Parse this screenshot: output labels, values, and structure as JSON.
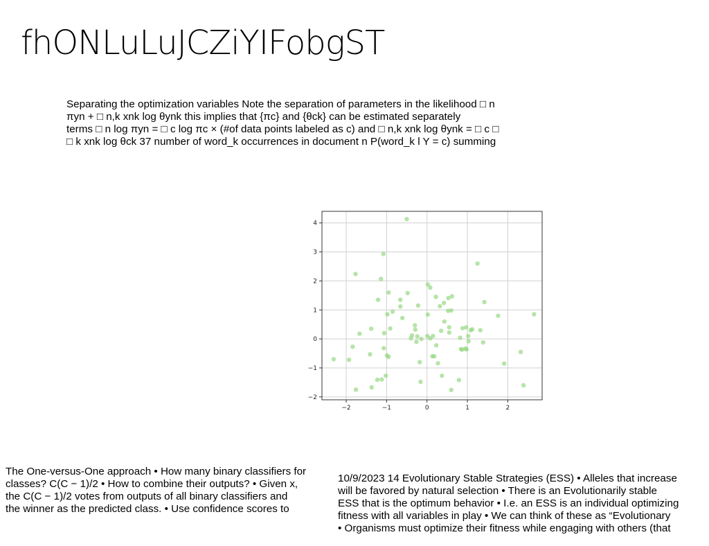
{
  "title": "fhONLuLuJCZiYIFobgST",
  "blocks": {
    "top": [
      "Separating the optimization variables Note the separation of parameters in the likelihood □ n",
      "πyn + □ n,k xnk log θynk this implies that {πc} and {θck} can be estimated separately",
      "terms □ n log πyn = □ c log πc × (#of data points labeled as c) and □ n,k xnk log θynk = □ c □",
      "□ k xnk log θck 37 number of word_k occurrences in document n P(word_k l Y = c) summing"
    ],
    "left": [
      "The One-versus-One approach • How many binary classifiers for",
      "classes? C(C − 1)/2 • How to combine their outputs? • Given x,",
      "the C(C − 1)/2 votes from outputs of all binary classifiers and",
      "the winner as the predicted class. • Use confidence scores to"
    ],
    "right": [
      "10/9/2023 14 Evolutionary Stable Strategies (ESS) • Alleles that increase",
      "will be favored by natural selection • There is an Evolutionarily stable",
      "ESS that is the optimum behavior • I.e. an ESS is an individual optimizing",
      "fitness with all variables in play • We can think of these as “Evolutionary",
      "• Organisms must optimize their fitness while engaging with others (that"
    ]
  },
  "chart_data": {
    "type": "scatter",
    "title": "",
    "xlabel": "",
    "ylabel": "",
    "xlim": [
      -2.6,
      2.85
    ],
    "ylim": [
      -2.1,
      4.4
    ],
    "xticks": [
      -2,
      -1,
      0,
      1,
      2
    ],
    "yticks": [
      -2,
      -1,
      0,
      1,
      2,
      3,
      4
    ],
    "xtick_labels": [
      "−2",
      "−1",
      "0",
      "1",
      "2"
    ],
    "ytick_labels": [
      "−2",
      "−1",
      "0",
      "1",
      "2",
      "3",
      "4"
    ],
    "grid": true,
    "point_color": "#8fd67a",
    "x": [
      -0.5,
      -1.08,
      1.25,
      -1.77,
      -1.14,
      -0.95,
      0.02,
      0.08,
      -0.66,
      -0.48,
      -0.98,
      0.22,
      0.53,
      0.62,
      -0.66,
      -0.22,
      0.42,
      0.6,
      -0.61,
      0.52,
      1.42,
      -0.85,
      0.43,
      1.76,
      0.02,
      0.55,
      2.65,
      -1.21,
      -0.3,
      0.32,
      -0.91,
      -1.38,
      0.15,
      0.88,
      0.97,
      1.12,
      1.08,
      -1.06,
      -1.67,
      -0.29,
      0.35,
      0.55,
      0.82,
      1.32,
      1.02,
      -0.4,
      -0.37,
      0.08,
      0.01,
      -0.24,
      -0.14,
      1.39,
      -1.84,
      -0.26,
      0.23,
      -1.07,
      0.95,
      0.84,
      0.87,
      0.98,
      1.03,
      -1.41,
      0.13,
      -0.99,
      -0.95,
      -1.93,
      -2.31,
      0.18,
      2.32,
      1.91,
      -0.18,
      0.27,
      -1.02,
      0.37,
      -1.23,
      -1.12,
      -0.16,
      0.79,
      -1.37,
      2.39,
      -1.76,
      0.6
    ],
    "y": [
      4.13,
      2.93,
      2.6,
      2.24,
      2.07,
      1.6,
      1.88,
      1.77,
      1.35,
      1.58,
      0.85,
      1.45,
      1.41,
      1.47,
      1.12,
      1.15,
      1.24,
      0.98,
      0.72,
      0.97,
      1.27,
      0.94,
      0.6,
      0.8,
      0.84,
      0.4,
      0.85,
      1.35,
      0.47,
      1.13,
      0.36,
      0.35,
      0.1,
      0.37,
      0.4,
      0.33,
      0.3,
      0.2,
      0.18,
      0.32,
      0.28,
      0.22,
      0.04,
      0.3,
      0.1,
      0.02,
      0.12,
      0.02,
      0.1,
      0.09,
      0.0,
      -0.12,
      -0.27,
      -0.1,
      -0.22,
      -0.32,
      -0.33,
      -0.35,
      -0.37,
      -0.36,
      -0.08,
      -0.53,
      -0.6,
      -0.57,
      -0.62,
      -0.72,
      -0.7,
      -0.6,
      -0.45,
      -0.85,
      -0.8,
      -0.84,
      -1.27,
      -1.27,
      -1.41,
      -1.4,
      -1.48,
      -1.42,
      -1.67,
      -1.6,
      -1.75,
      -1.76
    ]
  }
}
